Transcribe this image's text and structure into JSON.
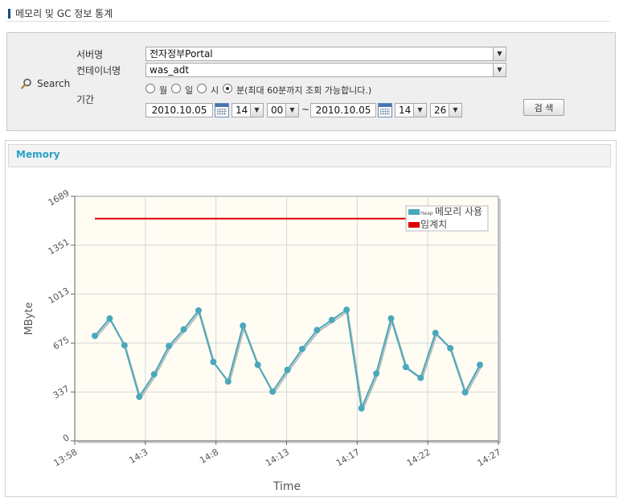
{
  "page": {
    "title": "메모리 및 GC 정보 통계"
  },
  "search": {
    "label": "Search",
    "server_label": "서버명",
    "server_value": "전자정부Portal",
    "container_label": "컨테이너명",
    "container_value": "was_adt",
    "period_label": "기간",
    "radios": [
      {
        "label": "월",
        "checked": false
      },
      {
        "label": "일",
        "checked": false
      },
      {
        "label": "시",
        "checked": false
      },
      {
        "label": "분(최대 60분까지 조회 가능합니다.)",
        "checked": true
      }
    ],
    "start_date": "2010.10.05",
    "start_hour": "14",
    "start_min": "00",
    "separator": "~",
    "end_date": "2010.10.05",
    "end_hour": "14",
    "end_min": "26",
    "button_label": "검 색"
  },
  "memory_panel": {
    "title": "Memory"
  },
  "chart_data": {
    "type": "line",
    "xlabel": "Time",
    "ylabel": "MByte",
    "ylim": [
      0,
      1689
    ],
    "y_ticks": [
      "0",
      "337",
      "675",
      "1013",
      "1351",
      "1689"
    ],
    "x_ticks": [
      "13:58",
      "14:3",
      "14:8",
      "14:13",
      "14:17",
      "14:22",
      "14:27"
    ],
    "grid": true,
    "legend_position": "top-right",
    "series": [
      {
        "name_prefix": "Heap",
        "name": "메모리 사용",
        "color": "#4aa8bb",
        "values": [
          725,
          845,
          660,
          305,
          460,
          655,
          770,
          900,
          545,
          410,
          795,
          525,
          340,
          490,
          635,
          765,
          835,
          905,
          225,
          465,
          845,
          510,
          435,
          745,
          640,
          335,
          525
        ]
      },
      {
        "name": "임계치",
        "color": "#dd0000",
        "values": [
          1535,
          1535,
          1535,
          1535,
          1535,
          1535,
          1535,
          1535,
          1535,
          1535,
          1535,
          1535,
          1535,
          1535,
          1535,
          1535,
          1535,
          1535,
          1535,
          1535,
          1535,
          1535,
          1535,
          1535,
          1535,
          1535,
          1535
        ]
      }
    ]
  }
}
